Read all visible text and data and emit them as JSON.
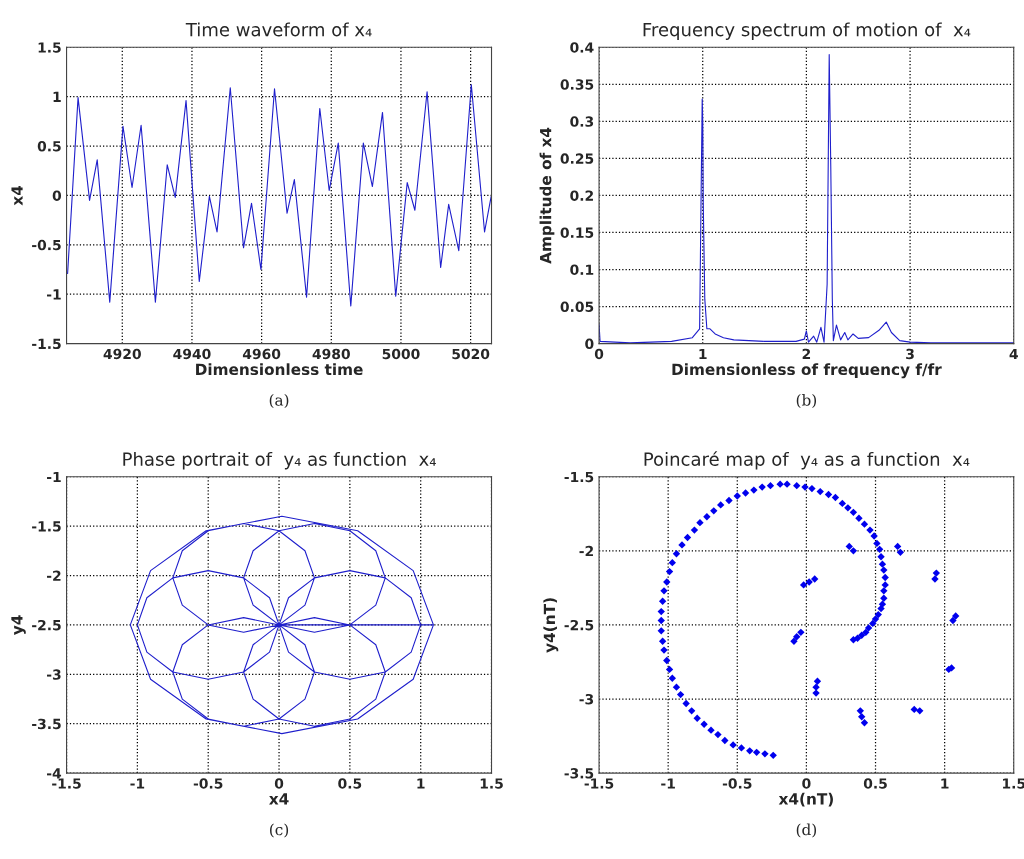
{
  "chart_data": [
    {
      "type": "line",
      "title": "Time waveform of x₄",
      "xlabel": "Dimensionless time",
      "ylabel": "x4",
      "annotations": [
        "(a)"
      ],
      "grid": true,
      "xlim": [
        4904,
        5026
      ],
      "xticks": [
        4920,
        4940,
        4960,
        4980,
        5000,
        5020
      ],
      "ylim": [
        -1.5,
        1.5
      ],
      "yticks": [
        -1.5,
        -1,
        -0.5,
        0,
        0.5,
        1,
        1.5
      ],
      "series": [
        {
          "color": "#1f1fcc",
          "x": [
            4904.3,
            4907.3,
            4910.6,
            4912.8,
            4916.4,
            4920.2,
            4922.8,
            4925.4,
            4929.5,
            4932.9,
            4935.2,
            4938.3,
            4942.1,
            4945.0,
            4947.2,
            4951.0,
            4954.8,
            4957.1,
            4959.8,
            4963.7,
            4967.3,
            4969.4,
            4972.9,
            4976.7,
            4979.4,
            4982.0,
            4985.6,
            4989.2,
            4991.8,
            4994.7,
            4998.5,
            5001.8,
            5004.0,
            5007.5,
            5011.4,
            5013.7,
            5016.6,
            5020.2,
            5024.0,
            5025.9
          ],
          "values": [
            -0.79,
            0.99,
            -0.05,
            0.36,
            -1.08,
            0.7,
            0.08,
            0.71,
            -1.08,
            0.31,
            -0.02,
            0.96,
            -0.87,
            -0.01,
            -0.37,
            1.09,
            -0.53,
            -0.08,
            -0.75,
            1.08,
            -0.18,
            0.16,
            -1.03,
            0.88,
            0.05,
            0.53,
            -1.12,
            0.53,
            0.09,
            0.84,
            -1.02,
            0.13,
            -0.15,
            1.05,
            -0.73,
            -0.09,
            -0.56,
            1.12,
            -0.37,
            -0.01
          ]
        }
      ]
    },
    {
      "type": "line",
      "title": "Frequency spectrum of motion of  x₄",
      "xlabel": "Dimensionless of frequency f/fr",
      "ylabel": "Amplitude of x4",
      "annotations": [
        "(b)"
      ],
      "grid": true,
      "xlim": [
        0,
        4
      ],
      "xticks": [
        0,
        1,
        2,
        3,
        4
      ],
      "ylim": [
        0,
        0.4
      ],
      "yticks": [
        0,
        0.05,
        0.1,
        0.15,
        0.2,
        0.25,
        0.3,
        0.35,
        0.4
      ],
      "series": [
        {
          "color": "#1f1fcc",
          "x": [
            0,
            0.01,
            0.3,
            0.7,
            0.9,
            0.97,
            0.995,
            1.0,
            1.005,
            1.02,
            1.04,
            1.07,
            1.12,
            1.2,
            1.3,
            1.6,
            1.9,
            1.98,
            2.0,
            2.02,
            2.07,
            2.1,
            2.14,
            2.17,
            2.2,
            2.22,
            2.235,
            2.25,
            2.26,
            2.29,
            2.33,
            2.37,
            2.4,
            2.45,
            2.5,
            2.6,
            2.7,
            2.77,
            2.82,
            2.9,
            3.0,
            3.2,
            4.0
          ],
          "values": [
            0.026,
            0.003,
            0.001,
            0.003,
            0.008,
            0.02,
            0.33,
            0.3,
            0.19,
            0.06,
            0.02,
            0.02,
            0.013,
            0.008,
            0.005,
            0.003,
            0.003,
            0.006,
            0.017,
            0.002,
            0.01,
            0.002,
            0.022,
            0.002,
            0.08,
            0.39,
            0.24,
            0.06,
            0.004,
            0.025,
            0.005,
            0.015,
            0.005,
            0.013,
            0.007,
            0.008,
            0.018,
            0.029,
            0.015,
            0.004,
            0.002,
            0.001,
            0.001
          ]
        }
      ]
    },
    {
      "type": "line",
      "title": "Phase portrait of  y₄ as function  x₄",
      "xlabel": "x4",
      "ylabel": "y4",
      "annotations": [
        "(c)"
      ],
      "grid": true,
      "xlim": [
        -1.5,
        1.5
      ],
      "xticks": [
        -1.5,
        -1,
        -0.5,
        0,
        0.5,
        1,
        1.5
      ],
      "ylim": [
        -4,
        -1
      ],
      "yticks": [
        -4,
        -3.5,
        -3,
        -2.5,
        -2,
        -1.5,
        -1
      ],
      "series": [
        {
          "color": "#1f1fcc",
          "x": [
            1.09,
            0.947,
            0.555,
            0.02,
            -0.515,
            -0.907,
            -1.05,
            -0.907,
            -0.515,
            0.02,
            0.555,
            0.947,
            1.09,
            0,
            0.067,
            0.25,
            0.5,
            0.75,
            0.933,
            1.0,
            0.933,
            0.75,
            0.5,
            0.25,
            0.067,
            0,
            0.25,
            0.5,
            0.683,
            0.75,
            0.683,
            0.5,
            0.25,
            0,
            -0.183,
            -0.25,
            -0.183,
            0,
            0.183,
            0.25,
            0.183,
            0,
            -0.25,
            -0.5,
            -0.683,
            -0.75,
            -0.683,
            -0.5,
            -0.25,
            0,
            -0.067,
            -0.25,
            -0.5,
            -0.75,
            -0.933,
            -1.0,
            -0.933,
            -0.75,
            -0.5,
            -0.25,
            -0.067,
            0,
            -0.25,
            -0.5,
            -0.683,
            -0.75,
            -0.683,
            -0.5,
            -0.25,
            0,
            0.183,
            0.25,
            0.183,
            0,
            -0.183,
            -0.25,
            -0.183,
            0,
            0.25,
            0.5,
            0.683,
            0.75,
            0.683,
            0.5,
            0.25,
            0
          ],
          "values": [
            -2.5,
            -1.95,
            -1.547,
            -1.4,
            -1.547,
            -1.95,
            -2.5,
            -3.05,
            -3.453,
            -3.6,
            -3.453,
            -3.05,
            -2.5,
            -2.5,
            -2.775,
            -2.976,
            -3.05,
            -2.976,
            -2.775,
            -2.5,
            -2.225,
            -2.024,
            -1.95,
            -2.024,
            -2.225,
            -2.5,
            -2.574,
            -2.5,
            -2.299,
            -2.024,
            -1.749,
            -1.547,
            -1.474,
            -1.547,
            -1.749,
            -2.024,
            -2.299,
            -2.5,
            -2.299,
            -2.024,
            -1.749,
            -1.547,
            -1.474,
            -1.547,
            -1.749,
            -2.024,
            -2.299,
            -2.5,
            -2.574,
            -2.5,
            -2.225,
            -2.024,
            -1.95,
            -2.024,
            -2.225,
            -2.5,
            -2.775,
            -2.976,
            -3.05,
            -2.976,
            -2.775,
            -2.5,
            -2.426,
            -2.5,
            -2.701,
            -2.976,
            -3.251,
            -3.453,
            -3.526,
            -3.453,
            -3.251,
            -2.976,
            -2.701,
            -2.5,
            -2.701,
            -2.976,
            -3.251,
            -3.453,
            -3.526,
            -3.453,
            -3.251,
            -2.976,
            -2.701,
            -2.5,
            -2.426,
            -2.5
          ]
        }
      ]
    },
    {
      "type": "scatter",
      "title": "Poincaré map of  y₄ as a function  x₄",
      "xlabel": "x4(nT)",
      "ylabel": "y4(nT)",
      "annotations": [
        "(d)"
      ],
      "grid": true,
      "marker": "diamond",
      "xlim": [
        -1.5,
        1.5
      ],
      "xticks": [
        -1.5,
        -1,
        -0.5,
        0,
        0.5,
        1,
        1.5
      ],
      "ylim": [
        -3.5,
        -1.5
      ],
      "yticks": [
        -3.5,
        -3,
        -2.5,
        -2,
        -1.5
      ],
      "series": [
        {
          "color": "#0000ee",
          "x": [
            -0.24,
            -0.3,
            -0.36,
            -0.41,
            -0.47,
            -0.53,
            -0.59,
            -0.64,
            -0.69,
            -0.74,
            -0.79,
            -0.83,
            -0.87,
            -0.91,
            -0.94,
            -0.97,
            -0.99,
            -1.01,
            -1.03,
            -1.04,
            -1.05,
            -1.05,
            -1.05,
            -1.04,
            -1.03,
            -1.01,
            -0.99,
            -0.97,
            -0.94,
            -0.9,
            -0.86,
            -0.81,
            -0.77,
            -0.72,
            -0.67,
            -0.62,
            -0.56,
            -0.5,
            -0.44,
            -0.38,
            -0.32,
            -0.26,
            -0.19,
            -0.14,
            -0.07,
            -0.01,
            0.04,
            0.1,
            0.16,
            0.21,
            0.26,
            0.3,
            0.34,
            0.38,
            0.42,
            0.46,
            0.49,
            0.51,
            0.53,
            0.54,
            0.55,
            0.56,
            0.57,
            0.57,
            0.56,
            0.56,
            0.55,
            0.54,
            0.52,
            0.5,
            0.48,
            0.45,
            0.43,
            0.4,
            0.37,
            0.34,
            0.31,
            0.34,
            0.66,
            0.68,
            0.94,
            0.93,
            -0.02,
            0.02,
            0.06,
            1.08,
            1.06,
            -0.04,
            -0.07,
            -0.09,
            1.05,
            1.03,
            0.08,
            0.07,
            0.07,
            0.39,
            0.4,
            0.42,
            0.78,
            0.82
          ],
          "values": [
            -3.38,
            -3.37,
            -3.36,
            -3.35,
            -3.33,
            -3.31,
            -3.28,
            -3.24,
            -3.21,
            -3.17,
            -3.13,
            -3.08,
            -3.03,
            -2.97,
            -2.92,
            -2.86,
            -2.8,
            -2.74,
            -2.67,
            -2.61,
            -2.54,
            -2.47,
            -2.41,
            -2.34,
            -2.27,
            -2.21,
            -2.14,
            -2.08,
            -2.02,
            -1.96,
            -1.91,
            -1.86,
            -1.81,
            -1.77,
            -1.73,
            -1.69,
            -1.66,
            -1.63,
            -1.61,
            -1.59,
            -1.57,
            -1.56,
            -1.55,
            -1.55,
            -1.56,
            -1.57,
            -1.58,
            -1.6,
            -1.62,
            -1.64,
            -1.68,
            -1.71,
            -1.74,
            -1.78,
            -1.82,
            -1.86,
            -1.9,
            -1.95,
            -1.99,
            -2.04,
            -2.09,
            -2.13,
            -2.18,
            -2.23,
            -2.27,
            -2.32,
            -2.36,
            -2.39,
            -2.43,
            -2.46,
            -2.49,
            -2.52,
            -2.55,
            -2.57,
            -2.59,
            -2.6,
            -1.97,
            -2.0,
            -1.97,
            -2.01,
            -2.15,
            -2.19,
            -2.23,
            -2.21,
            -2.19,
            -2.44,
            -2.47,
            -2.55,
            -2.58,
            -2.61,
            -2.79,
            -2.8,
            -2.88,
            -2.92,
            -2.96,
            -3.08,
            -3.12,
            -3.16,
            -3.07,
            -3.08
          ]
        }
      ]
    }
  ]
}
